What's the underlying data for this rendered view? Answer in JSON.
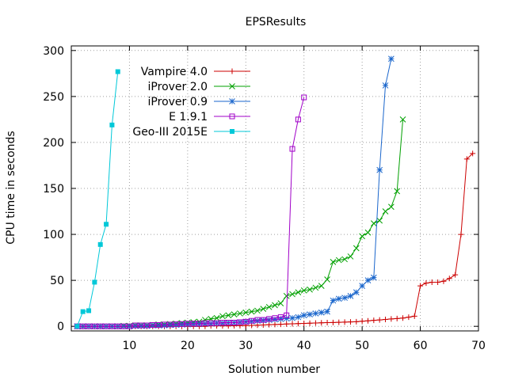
{
  "chart_data": {
    "type": "line",
    "title": "EPSResults",
    "xlabel": "Solution number",
    "ylabel": "CPU time in seconds",
    "xlim": [
      0,
      70
    ],
    "ylim": [
      -5,
      305
    ],
    "xticks": [
      10,
      20,
      30,
      40,
      50,
      60,
      70
    ],
    "yticks": [
      0,
      50,
      100,
      150,
      200,
      250,
      300
    ],
    "grid": true,
    "legend_position": "top-left",
    "series": [
      {
        "name": "Vampire 4.0",
        "color": "#cc0000",
        "marker": "plus",
        "x": [
          1,
          2,
          3,
          4,
          5,
          6,
          7,
          8,
          9,
          10,
          11,
          12,
          13,
          14,
          15,
          16,
          17,
          18,
          19,
          20,
          21,
          22,
          23,
          24,
          25,
          26,
          27,
          28,
          29,
          30,
          31,
          32,
          33,
          34,
          35,
          36,
          37,
          38,
          39,
          40,
          41,
          42,
          43,
          44,
          45,
          46,
          47,
          48,
          49,
          50,
          51,
          52,
          53,
          54,
          55,
          56,
          57,
          58,
          59,
          60,
          61,
          62,
          63,
          64,
          65,
          66,
          67,
          68,
          69
        ],
        "y": [
          0,
          0,
          0,
          0,
          0,
          0,
          0,
          0,
          0,
          0,
          0,
          0,
          0,
          0,
          0,
          0,
          0,
          0,
          0,
          0,
          0,
          0,
          0,
          0.5,
          0.5,
          0.5,
          0.5,
          0.6,
          0.7,
          0.8,
          1,
          1.2,
          1.5,
          1.8,
          2,
          2.2,
          2.5,
          2.8,
          3,
          3.2,
          3.4,
          3.6,
          3.8,
          4,
          4.2,
          4.4,
          4.6,
          4.8,
          5,
          5.5,
          6,
          6.5,
          7,
          7.5,
          8,
          8.5,
          9,
          10,
          11,
          44,
          47,
          48,
          48,
          49,
          52,
          56,
          100,
          182,
          188
        ]
      },
      {
        "name": "iProver 2.0",
        "color": "#00a000",
        "marker": "x",
        "x": [
          1,
          2,
          3,
          4,
          5,
          6,
          7,
          8,
          9,
          10,
          11,
          12,
          13,
          14,
          15,
          16,
          17,
          18,
          19,
          20,
          21,
          22,
          23,
          24,
          25,
          26,
          27,
          28,
          29,
          30,
          31,
          32,
          33,
          34,
          35,
          36,
          37,
          38,
          39,
          40,
          41,
          42,
          43,
          44,
          45,
          46,
          47,
          48,
          49,
          50,
          51,
          52,
          53,
          54,
          55,
          56,
          57
        ],
        "y": [
          0,
          0,
          0,
          0,
          0,
          0,
          0,
          0,
          0.5,
          0.5,
          1,
          1,
          1,
          1.5,
          2,
          2,
          2.5,
          3,
          3.5,
          4,
          4.5,
          5,
          7,
          8,
          9,
          11,
          12,
          13,
          14,
          15,
          16,
          17,
          19,
          21,
          23,
          25,
          33,
          35,
          37,
          39,
          40,
          42,
          44,
          51,
          70,
          72,
          73,
          76,
          85,
          98,
          102,
          112,
          115,
          125,
          130,
          147,
          225
        ]
      },
      {
        "name": "iProver 0.9",
        "color": "#1a66cc",
        "marker": "star",
        "x": [
          1,
          2,
          3,
          4,
          5,
          6,
          7,
          8,
          9,
          10,
          11,
          12,
          13,
          14,
          15,
          16,
          17,
          18,
          19,
          20,
          21,
          22,
          23,
          24,
          25,
          26,
          27,
          28,
          29,
          30,
          31,
          32,
          33,
          34,
          35,
          36,
          37,
          38,
          39,
          40,
          41,
          42,
          43,
          44,
          45,
          46,
          47,
          48,
          49,
          50,
          51,
          52,
          53,
          54,
          55
        ],
        "y": [
          0,
          0,
          0,
          0,
          0,
          0,
          0,
          0,
          0,
          0,
          0.5,
          0.5,
          0.5,
          1,
          1,
          1,
          1.5,
          1.5,
          2,
          2,
          2.5,
          2.5,
          3,
          3,
          3.5,
          3.5,
          4,
          4,
          4.5,
          5,
          5.5,
          6,
          6.5,
          7,
          7.5,
          8,
          8.5,
          9,
          10,
          12,
          13,
          14,
          15,
          16,
          28,
          30,
          31,
          33,
          37,
          44,
          50,
          53,
          170,
          262,
          291
        ]
      },
      {
        "name": "E 1.9.1",
        "color": "#a000c8",
        "marker": "square",
        "x": [
          1,
          2,
          3,
          4,
          5,
          6,
          7,
          8,
          9,
          10,
          11,
          12,
          13,
          14,
          15,
          16,
          17,
          18,
          19,
          20,
          21,
          22,
          23,
          24,
          25,
          26,
          27,
          28,
          29,
          30,
          31,
          32,
          33,
          34,
          35,
          36,
          37,
          38,
          39,
          40
        ],
        "y": [
          0,
          0,
          0,
          0,
          0,
          0,
          0,
          0,
          0,
          0,
          1,
          1,
          1,
          1.5,
          1.5,
          2,
          2,
          2.5,
          2.5,
          3,
          3,
          3,
          3.5,
          3.5,
          3.5,
          4,
          4,
          4,
          4.5,
          5,
          6,
          7,
          7,
          8,
          9,
          10,
          12,
          193,
          225,
          249
        ]
      },
      {
        "name": "Geo-III 2015E",
        "color": "#00c8d8",
        "marker": "filled-square",
        "x": [
          1,
          2,
          3,
          4,
          5,
          6,
          7,
          8
        ],
        "y": [
          0,
          16,
          17,
          48,
          89,
          111,
          219,
          277
        ]
      }
    ]
  }
}
